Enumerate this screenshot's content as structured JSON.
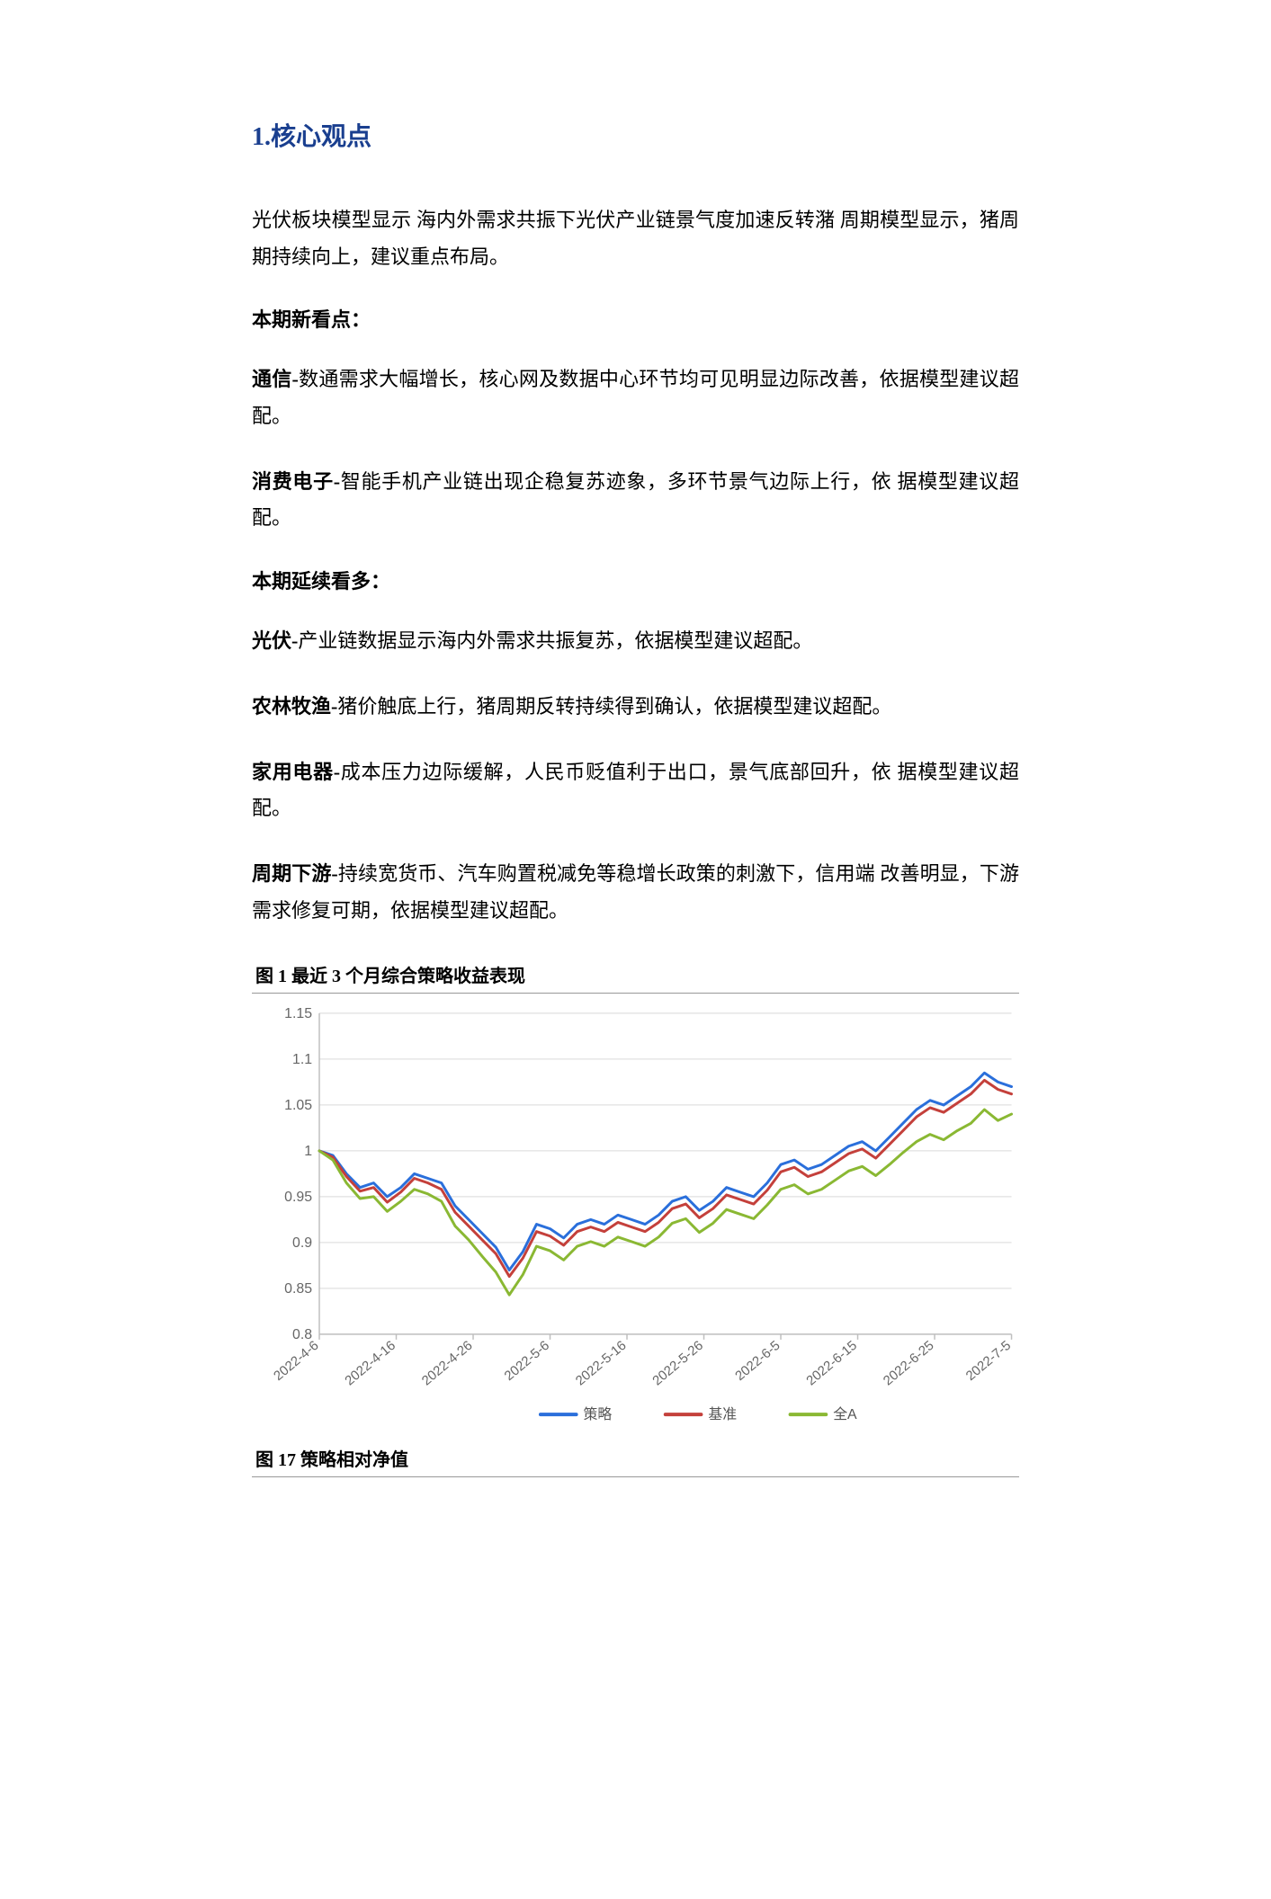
{
  "headings": {
    "h1": "1.核心观点",
    "fig1_title": "图 1 最近 3 个月综合策略收益表现",
    "fig17_title": "图 17 策略相对净值"
  },
  "paragraphs": {
    "p1": "光伏板块模型显示 海内外需求共振下光伏产业链景气度加速反转潴 周期模型显示，猪周期持续向上，建议重点布局。",
    "p2_label": "本期新看点：",
    "p3_bold": "通信-",
    "p3_rest": "数通需求大幅增长，核心网及数据中心环节均可见明显边际改善，依据模型建议超配。",
    "p4_bold": "消费电子-",
    "p4_rest": "智能手机产业链出现企稳复苏迹象，多环节景气边际上行，依 据模型建议超配。",
    "p5_label": "本期延续看多：",
    "p6_bold": "光伏-",
    "p6_rest": "产业链数据显示海内外需求共振复苏，依据模型建议超配。",
    "p7_bold": "农林牧渔-",
    "p7_rest": "猪价触底上行，猪周期反转持续得到确认，依据模型建议超配。",
    "p8_bold": "家用电器-",
    "p8_rest": "成本压力边际缓解，人民币贬值利于出口，景气底部回升，依 据模型建议超配。",
    "p9_bold": "周期下游-",
    "p9_rest": "持续宽货币、汽车购置税减免等稳增长政策的刺激下，信用端 改善明显，下游需求修复可期，依据模型建议超配。"
  },
  "chart": {
    "type": "line",
    "background_color": "#ffffff",
    "grid_color": "#d9d9d9",
    "axis_color": "#bfbfbf",
    "text_color": "#666666",
    "ylim": [
      0.8,
      1.15
    ],
    "ytick_step": 0.05,
    "yticks": [
      "0.8",
      "0.85",
      "0.9",
      "0.95",
      "1",
      "1.05",
      "1.1",
      "1.15"
    ],
    "xticks": [
      "2022-4-6",
      "2022-4-16",
      "2022-4-26",
      "2022-5-6",
      "2022-5-16",
      "2022-5-26",
      "2022-6-5",
      "2022-6-15",
      "2022-6-25",
      "2022-7-5"
    ],
    "label_fontsize": 16,
    "line_width": 3,
    "legend": {
      "items": [
        {
          "label": "策略",
          "color": "#2a6fdb"
        },
        {
          "label": "基准",
          "color": "#c4403b"
        },
        {
          "label": "全A",
          "color": "#8ab833"
        }
      ],
      "position": "bottom"
    },
    "series": [
      {
        "name": "策略",
        "color": "#2a6fdb",
        "values": [
          1.0,
          0.995,
          0.975,
          0.96,
          0.965,
          0.95,
          0.96,
          0.975,
          0.97,
          0.965,
          0.94,
          0.925,
          0.91,
          0.895,
          0.87,
          0.89,
          0.92,
          0.915,
          0.905,
          0.92,
          0.925,
          0.92,
          0.93,
          0.925,
          0.92,
          0.93,
          0.945,
          0.95,
          0.935,
          0.945,
          0.96,
          0.955,
          0.95,
          0.965,
          0.985,
          0.99,
          0.98,
          0.985,
          0.995,
          1.005,
          1.01,
          1.0,
          1.015,
          1.03,
          1.045,
          1.055,
          1.05,
          1.06,
          1.07,
          1.085,
          1.075,
          1.07
        ]
      },
      {
        "name": "基准",
        "color": "#c4403b",
        "values": [
          1.0,
          0.993,
          0.972,
          0.956,
          0.96,
          0.944,
          0.955,
          0.97,
          0.965,
          0.958,
          0.933,
          0.918,
          0.903,
          0.888,
          0.863,
          0.883,
          0.912,
          0.907,
          0.897,
          0.912,
          0.917,
          0.912,
          0.922,
          0.917,
          0.912,
          0.922,
          0.937,
          0.942,
          0.927,
          0.937,
          0.952,
          0.947,
          0.942,
          0.957,
          0.977,
          0.982,
          0.972,
          0.977,
          0.987,
          0.997,
          1.002,
          0.992,
          1.007,
          1.022,
          1.037,
          1.047,
          1.042,
          1.052,
          1.062,
          1.077,
          1.067,
          1.062
        ]
      },
      {
        "name": "全A",
        "color": "#8ab833",
        "values": [
          1.0,
          0.99,
          0.965,
          0.948,
          0.95,
          0.934,
          0.945,
          0.958,
          0.953,
          0.945,
          0.918,
          0.903,
          0.885,
          0.868,
          0.843,
          0.865,
          0.896,
          0.891,
          0.881,
          0.896,
          0.901,
          0.896,
          0.906,
          0.901,
          0.896,
          0.906,
          0.921,
          0.926,
          0.911,
          0.921,
          0.936,
          0.931,
          0.926,
          0.941,
          0.958,
          0.963,
          0.953,
          0.958,
          0.968,
          0.978,
          0.983,
          0.973,
          0.985,
          0.998,
          1.01,
          1.018,
          1.012,
          1.022,
          1.03,
          1.045,
          1.033,
          1.04
        ]
      }
    ]
  }
}
